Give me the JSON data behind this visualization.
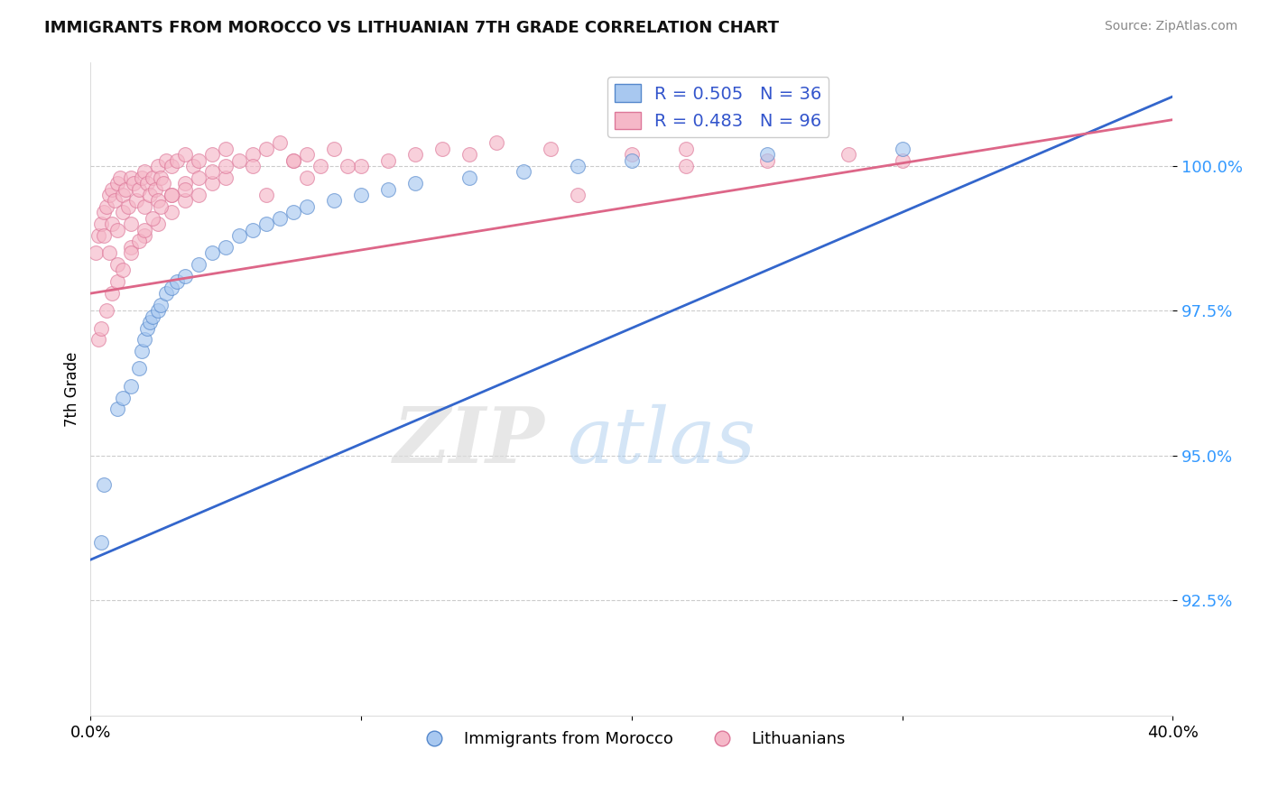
{
  "title": "IMMIGRANTS FROM MOROCCO VS LITHUANIAN 7TH GRADE CORRELATION CHART",
  "source": "Source: ZipAtlas.com",
  "ylabel": "7th Grade",
  "xlim": [
    0.0,
    40.0
  ],
  "ylim": [
    90.5,
    101.8
  ],
  "yticks": [
    92.5,
    95.0,
    97.5,
    100.0
  ],
  "ytick_labels": [
    "92.5%",
    "95.0%",
    "97.5%",
    "100.0%"
  ],
  "xtick_positions": [
    0.0,
    10.0,
    20.0,
    30.0,
    40.0
  ],
  "xtick_labels": [
    "0.0%",
    "",
    "",
    "",
    "40.0%"
  ],
  "legend_bottom_labels": [
    "Immigrants from Morocco",
    "Lithuanians"
  ],
  "blue_R": 0.505,
  "blue_N": 36,
  "pink_R": 0.483,
  "pink_N": 96,
  "blue_color": "#A8C8F0",
  "pink_color": "#F5B8C8",
  "blue_edge_color": "#5588CC",
  "pink_edge_color": "#DD7799",
  "blue_line_color": "#3366CC",
  "pink_line_color": "#DD6688",
  "watermark_zip": "ZIP",
  "watermark_atlas": "atlas",
  "blue_scatter_x": [
    0.5,
    1.0,
    1.2,
    1.5,
    1.8,
    1.9,
    2.0,
    2.1,
    2.2,
    2.3,
    2.5,
    2.6,
    2.8,
    3.0,
    3.2,
    3.5,
    4.0,
    4.5,
    5.0,
    5.5,
    6.0,
    6.5,
    7.0,
    7.5,
    8.0,
    9.0,
    10.0,
    11.0,
    12.0,
    14.0,
    16.0,
    18.0,
    20.0,
    25.0,
    30.0,
    0.4
  ],
  "blue_scatter_y": [
    94.5,
    95.8,
    96.0,
    96.2,
    96.5,
    96.8,
    97.0,
    97.2,
    97.3,
    97.4,
    97.5,
    97.6,
    97.8,
    97.9,
    98.0,
    98.1,
    98.3,
    98.5,
    98.6,
    98.8,
    98.9,
    99.0,
    99.1,
    99.2,
    99.3,
    99.4,
    99.5,
    99.6,
    99.7,
    99.8,
    99.9,
    100.0,
    100.1,
    100.2,
    100.3,
    93.5
  ],
  "pink_scatter_x": [
    0.2,
    0.3,
    0.4,
    0.5,
    0.5,
    0.6,
    0.7,
    0.7,
    0.8,
    0.8,
    0.9,
    1.0,
    1.0,
    1.1,
    1.2,
    1.2,
    1.3,
    1.4,
    1.5,
    1.5,
    1.6,
    1.7,
    1.8,
    1.9,
    2.0,
    2.0,
    2.1,
    2.2,
    2.3,
    2.4,
    2.5,
    2.5,
    2.6,
    2.7,
    2.8,
    3.0,
    3.0,
    3.2,
    3.5,
    3.5,
    3.8,
    4.0,
    4.5,
    5.0,
    5.5,
    6.0,
    6.5,
    7.0,
    7.5,
    8.0,
    8.5,
    9.0,
    10.0,
    11.0,
    12.0,
    13.0,
    14.0,
    15.0,
    17.0,
    20.0,
    22.0,
    25.0,
    28.0,
    30.0,
    1.0,
    1.5,
    2.0,
    2.5,
    3.0,
    3.5,
    4.0,
    4.5,
    5.0,
    0.6,
    0.8,
    1.0,
    1.2,
    1.5,
    1.8,
    2.0,
    2.3,
    2.6,
    3.0,
    3.5,
    4.0,
    4.5,
    5.0,
    6.0,
    6.5,
    7.5,
    8.0,
    9.5,
    18.0,
    22.0,
    0.3,
    0.4
  ],
  "pink_scatter_y": [
    98.5,
    98.8,
    99.0,
    99.2,
    98.8,
    99.3,
    99.5,
    98.5,
    99.6,
    99.0,
    99.4,
    99.7,
    98.9,
    99.8,
    99.5,
    99.2,
    99.6,
    99.3,
    99.8,
    99.0,
    99.7,
    99.4,
    99.6,
    99.8,
    99.9,
    99.3,
    99.7,
    99.5,
    99.8,
    99.6,
    100.0,
    99.4,
    99.8,
    99.7,
    100.1,
    100.0,
    99.5,
    100.1,
    100.2,
    99.7,
    100.0,
    100.1,
    100.2,
    100.3,
    100.1,
    100.2,
    100.3,
    100.4,
    100.1,
    100.2,
    100.0,
    100.3,
    100.0,
    100.1,
    100.2,
    100.3,
    100.2,
    100.4,
    100.3,
    100.2,
    100.3,
    100.1,
    100.2,
    100.1,
    98.3,
    98.6,
    98.8,
    99.0,
    99.2,
    99.4,
    99.5,
    99.7,
    99.8,
    97.5,
    97.8,
    98.0,
    98.2,
    98.5,
    98.7,
    98.9,
    99.1,
    99.3,
    99.5,
    99.6,
    99.8,
    99.9,
    100.0,
    100.0,
    99.5,
    100.1,
    99.8,
    100.0,
    99.5,
    100.0,
    97.0,
    97.2
  ]
}
